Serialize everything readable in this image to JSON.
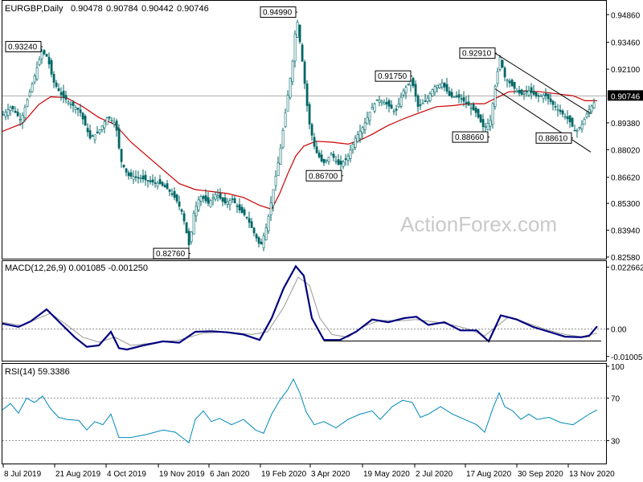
{
  "chart_data": [
    {
      "type": "candlestick",
      "title": "EURGBP,Daily",
      "ohlc_readout": [
        "0.90478",
        "0.90784",
        "0.90442",
        "0.90746"
      ],
      "last_price_label": "0.90746",
      "last_price": 0.90746,
      "ylim": [
        0.8258,
        0.9544
      ],
      "y_ticks": [
        "0.94860",
        "0.93460",
        "0.92100",
        "0.90746",
        "0.89380",
        "0.88020",
        "0.86620",
        "0.85300",
        "0.83940",
        "0.82580"
      ],
      "x_ticks": [
        "8 Jul 2019",
        "21 Aug 2019",
        "4 Oct 2019",
        "19 Nov 2019",
        "6 Jan 2020",
        "19 Feb 2020",
        "3 Apr 2020",
        "19 May 2020",
        "2 Jul 2020",
        "17 Aug 2020",
        "30 Sep 2020",
        "13 Nov 2020"
      ],
      "price_path": [
        [
          0,
          0.898
        ],
        [
          10,
          0.902
        ],
        [
          22,
          0.895
        ],
        [
          35,
          0.912
        ],
        [
          48,
          0.93
        ],
        [
          55,
          0.927
        ],
        [
          62,
          0.915
        ],
        [
          72,
          0.908
        ],
        [
          82,
          0.904
        ],
        [
          95,
          0.9
        ],
        [
          108,
          0.886
        ],
        [
          118,
          0.889
        ],
        [
          130,
          0.897
        ],
        [
          140,
          0.893
        ],
        [
          146,
          0.875
        ],
        [
          155,
          0.867
        ],
        [
          170,
          0.866
        ],
        [
          182,
          0.864
        ],
        [
          195,
          0.863
        ],
        [
          205,
          0.86
        ],
        [
          215,
          0.855
        ],
        [
          223,
          0.848
        ],
        [
          232,
          0.83
        ],
        [
          236,
          0.847
        ],
        [
          245,
          0.857
        ],
        [
          255,
          0.853
        ],
        [
          265,
          0.858
        ],
        [
          275,
          0.853
        ],
        [
          285,
          0.855
        ],
        [
          295,
          0.849
        ],
        [
          303,
          0.846
        ],
        [
          312,
          0.838
        ],
        [
          320,
          0.831
        ],
        [
          328,
          0.842
        ],
        [
          336,
          0.86
        ],
        [
          344,
          0.878
        ],
        [
          352,
          0.902
        ],
        [
          360,
          0.925
        ],
        [
          365,
          0.948
        ],
        [
          372,
          0.925
        ],
        [
          380,
          0.895
        ],
        [
          388,
          0.88
        ],
        [
          398,
          0.873
        ],
        [
          408,
          0.878
        ],
        [
          418,
          0.872
        ],
        [
          428,
          0.876
        ],
        [
          438,
          0.886
        ],
        [
          448,
          0.892
        ],
        [
          458,
          0.901
        ],
        [
          466,
          0.906
        ],
        [
          478,
          0.903
        ],
        [
          488,
          0.899
        ],
        [
          498,
          0.91
        ],
        [
          508,
          0.916
        ],
        [
          516,
          0.902
        ],
        [
          526,
          0.905
        ],
        [
          536,
          0.912
        ],
        [
          546,
          0.914
        ],
        [
          556,
          0.907
        ],
        [
          566,
          0.907
        ],
        [
          578,
          0.903
        ],
        [
          588,
          0.899
        ],
        [
          598,
          0.891
        ],
        [
          606,
          0.895
        ],
        [
          613,
          0.915
        ],
        [
          618,
          0.927
        ],
        [
          624,
          0.917
        ],
        [
          634,
          0.912
        ],
        [
          644,
          0.908
        ],
        [
          654,
          0.91
        ],
        [
          664,
          0.907
        ],
        [
          674,
          0.908
        ],
        [
          684,
          0.903
        ],
        [
          694,
          0.899
        ],
        [
          704,
          0.895
        ],
        [
          712,
          0.889
        ],
        [
          720,
          0.893
        ],
        [
          728,
          0.9
        ],
        [
          735,
          0.904
        ],
        [
          740,
          0.911
        ]
      ],
      "moving_average": [
        [
          0,
          0.8895
        ],
        [
          25,
          0.8935
        ],
        [
          45,
          0.903
        ],
        [
          60,
          0.907
        ],
        [
          80,
          0.9065
        ],
        [
          100,
          0.902
        ],
        [
          120,
          0.8965
        ],
        [
          140,
          0.893
        ],
        [
          160,
          0.884
        ],
        [
          180,
          0.877
        ],
        [
          200,
          0.87
        ],
        [
          220,
          0.863
        ],
        [
          240,
          0.86
        ],
        [
          260,
          0.859
        ],
        [
          280,
          0.858
        ],
        [
          300,
          0.856
        ],
        [
          320,
          0.852
        ],
        [
          335,
          0.85
        ],
        [
          345,
          0.858
        ],
        [
          355,
          0.868
        ],
        [
          365,
          0.877
        ],
        [
          375,
          0.882
        ],
        [
          390,
          0.8845
        ],
        [
          410,
          0.884
        ],
        [
          430,
          0.883
        ],
        [
          445,
          0.885
        ],
        [
          460,
          0.888
        ],
        [
          480,
          0.8925
        ],
        [
          500,
          0.896
        ],
        [
          520,
          0.899
        ],
        [
          540,
          0.902
        ],
        [
          560,
          0.9025
        ],
        [
          580,
          0.9035
        ],
        [
          600,
          0.9035
        ],
        [
          615,
          0.9065
        ],
        [
          630,
          0.9095
        ],
        [
          650,
          0.91
        ],
        [
          670,
          0.9095
        ],
        [
          690,
          0.9085
        ],
        [
          710,
          0.9075
        ],
        [
          725,
          0.905
        ],
        [
          740,
          0.905
        ]
      ],
      "annotations": [
        {
          "text": "0.93240",
          "x": 48,
          "y": 0.9324
        },
        {
          "text": "0.94990",
          "x": 365,
          "y": 0.9499
        },
        {
          "text": "0.91750",
          "x": 508,
          "y": 0.9175
        },
        {
          "text": "0.92910",
          "x": 613,
          "y": 0.9291
        },
        {
          "text": "0.88660",
          "x": 604,
          "y": 0.8866
        },
        {
          "text": "0.88610",
          "x": 708,
          "y": 0.8861
        },
        {
          "text": "0.86700",
          "x": 422,
          "y": 0.867
        },
        {
          "text": "0.82760",
          "x": 232,
          "y": 0.8276
        }
      ],
      "channel_lines": [
        {
          "from": [
            613,
            0.9291
          ],
          "to": [
            732,
            0.8985
          ]
        },
        {
          "from": [
            613,
            0.911
          ],
          "to": [
            732,
            0.879
          ]
        }
      ],
      "watermark": "ActionForex.com",
      "colors": {
        "candle": "#006666",
        "ma": "#cc0000",
        "channel": "#000000",
        "last_line": "#aaaaaa",
        "last_label_bg": "#000000",
        "last_label_text": "#ffffff"
      }
    },
    {
      "type": "line",
      "title": "MACD(12,26,9) 0.001085 -0.001250",
      "ylim": [
        -0.0113,
        0.024
      ],
      "y_ticks": [
        "0.022662",
        "0.00",
        "-0.010052"
      ],
      "zero_value": 0,
      "series": [
        {
          "values": [
            [
              0,
              0.002
            ],
            [
              20,
              0.0008
            ],
            [
              35,
              0.0028
            ],
            [
              55,
              0.0072
            ],
            [
              70,
              0.0028
            ],
            [
              90,
              -0.003
            ],
            [
              105,
              -0.0065
            ],
            [
              120,
              -0.006
            ],
            [
              135,
              -0.001
            ],
            [
              145,
              -0.007
            ],
            [
              155,
              -0.0075
            ],
            [
              175,
              -0.006
            ],
            [
              200,
              -0.0045
            ],
            [
              220,
              -0.005
            ],
            [
              240,
              -0.001
            ],
            [
              260,
              -0.0008
            ],
            [
              280,
              -0.0012
            ],
            [
              300,
              -0.002
            ],
            [
              320,
              -0.004
            ],
            [
              335,
              0.004
            ],
            [
              350,
              0.015
            ],
            [
              365,
              0.023
            ],
            [
              375,
              0.0195
            ],
            [
              385,
              0.004
            ],
            [
              400,
              -0.004
            ],
            [
              420,
              -0.004
            ],
            [
              440,
              -0.001
            ],
            [
              460,
              0.0035
            ],
            [
              480,
              0.0025
            ],
            [
              500,
              0.004
            ],
            [
              515,
              0.0045
            ],
            [
              530,
              0.0015
            ],
            [
              550,
              0.0025
            ],
            [
              570,
              -0.0005
            ],
            [
              590,
              -0.0005
            ],
            [
              605,
              -0.0045
            ],
            [
              620,
              0.005
            ],
            [
              640,
              0.0035
            ],
            [
              660,
              0.0008
            ],
            [
              680,
              -0.001
            ],
            [
              700,
              -0.0028
            ],
            [
              720,
              -0.003
            ],
            [
              730,
              -0.0025
            ],
            [
              740,
              0.001
            ]
          ]
        },
        {
          "values": [
            [
              0,
              0.0025
            ],
            [
              25,
              0.0012
            ],
            [
              45,
              0.004
            ],
            [
              60,
              0.0058
            ],
            [
              80,
              0.0015
            ],
            [
              100,
              -0.003
            ],
            [
              120,
              -0.0048
            ],
            [
              140,
              -0.003
            ],
            [
              160,
              -0.006
            ],
            [
              190,
              -0.005
            ],
            [
              220,
              -0.004
            ],
            [
              250,
              -0.0015
            ],
            [
              280,
              -0.001
            ],
            [
              310,
              -0.002
            ],
            [
              330,
              -0.001
            ],
            [
              350,
              0.008
            ],
            [
              368,
              0.019
            ],
            [
              382,
              0.016
            ],
            [
              395,
              0.004
            ],
            [
              410,
              -0.002
            ],
            [
              430,
              -0.003
            ],
            [
              450,
              0.001
            ],
            [
              470,
              0.0032
            ],
            [
              495,
              0.003
            ],
            [
              515,
              0.0035
            ],
            [
              540,
              0.0025
            ],
            [
              560,
              0.0015
            ],
            [
              580,
              0.0
            ],
            [
              600,
              -0.0025
            ],
            [
              615,
              0.001
            ],
            [
              630,
              0.0045
            ],
            [
              655,
              0.002
            ],
            [
              680,
              -0.0005
            ],
            [
              700,
              -0.002
            ],
            [
              720,
              -0.0028
            ],
            [
              740,
              -0.0015
            ]
          ]
        }
      ],
      "support_line": {
        "from": [
          400,
          -0.0044
        ],
        "to": [
          745,
          -0.0044
        ]
      },
      "colors": {
        "macd": "#000080",
        "signal": "#999999",
        "zero": "#888888"
      }
    },
    {
      "type": "line",
      "title": "RSI(14) 59.3386",
      "ylim": [
        10,
        100
      ],
      "y_ticks": [
        "100",
        "70",
        "30"
      ],
      "levels": [
        70,
        30
      ],
      "series": [
        {
          "values": [
            [
              0,
              59
            ],
            [
              10,
              65
            ],
            [
              20,
              56
            ],
            [
              30,
              70
            ],
            [
              40,
              66
            ],
            [
              50,
              72
            ],
            [
              60,
              60
            ],
            [
              70,
              52
            ],
            [
              80,
              50
            ],
            [
              95,
              49
            ],
            [
              105,
              40
            ],
            [
              115,
              48
            ],
            [
              125,
              45
            ],
            [
              135,
              55
            ],
            [
              145,
              33
            ],
            [
              160,
              33
            ],
            [
              180,
              36
            ],
            [
              200,
              40
            ],
            [
              215,
              38
            ],
            [
              232,
              28
            ],
            [
              240,
              50
            ],
            [
              250,
              58
            ],
            [
              260,
              48
            ],
            [
              270,
              51
            ],
            [
              285,
              45
            ],
            [
              300,
              50
            ],
            [
              315,
              40
            ],
            [
              325,
              37
            ],
            [
              335,
              55
            ],
            [
              345,
              68
            ],
            [
              355,
              78
            ],
            [
              362,
              88
            ],
            [
              370,
              75
            ],
            [
              378,
              57
            ],
            [
              388,
              45
            ],
            [
              400,
              48
            ],
            [
              415,
              42
            ],
            [
              430,
              50
            ],
            [
              445,
              55
            ],
            [
              460,
              58
            ],
            [
              470,
              50
            ],
            [
              485,
              62
            ],
            [
              498,
              68
            ],
            [
              510,
              66
            ],
            [
              520,
              52
            ],
            [
              530,
              55
            ],
            [
              545,
              62
            ],
            [
              560,
              55
            ],
            [
              575,
              50
            ],
            [
              590,
              45
            ],
            [
              600,
              38
            ],
            [
              610,
              60
            ],
            [
              618,
              75
            ],
            [
              625,
              62
            ],
            [
              635,
              58
            ],
            [
              645,
              50
            ],
            [
              655,
              55
            ],
            [
              665,
              50
            ],
            [
              680,
              52
            ],
            [
              695,
              47
            ],
            [
              710,
              45
            ],
            [
              720,
              50
            ],
            [
              730,
              55
            ],
            [
              740,
              59
            ]
          ]
        }
      ],
      "colors": {
        "rsi": "#0088bb",
        "level": "#999999"
      }
    }
  ]
}
